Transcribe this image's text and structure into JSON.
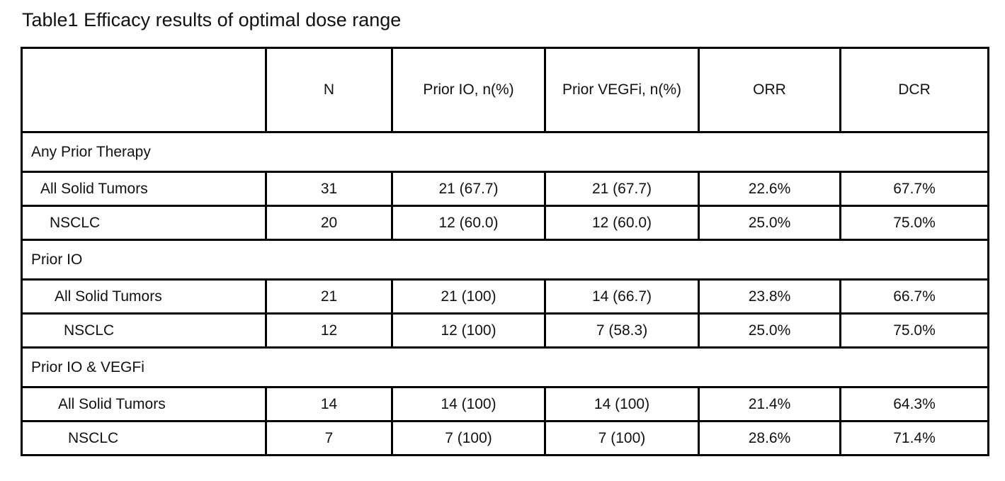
{
  "caption": "Table1 Efficacy results of optimal dose range",
  "columns": [
    "",
    "N",
    "Prior IO, n(%)",
    "Prior VEGFi, n(%)",
    "ORR",
    "DCR"
  ],
  "groups": [
    {
      "label": "Any Prior Therapy",
      "rows": [
        {
          "label": "All Solid Tumors",
          "n": "31",
          "prior_io": "21 (67.7)",
          "prior_vegfi": "21 (67.7)",
          "orr": "22.6%",
          "dcr": "67.7%"
        },
        {
          "label": "NSCLC",
          "n": "20",
          "prior_io": "12 (60.0)",
          "prior_vegfi": "12 (60.0)",
          "orr": "25.0%",
          "dcr": "75.0%"
        }
      ]
    },
    {
      "label": "Prior IO",
      "rows": [
        {
          "label": "All Solid Tumors",
          "n": "21",
          "prior_io": "21 (100)",
          "prior_vegfi": "14 (66.7)",
          "orr": "23.8%",
          "dcr": "66.7%"
        },
        {
          "label": "NSCLC",
          "n": "12",
          "prior_io": "12 (100)",
          "prior_vegfi": "7 (58.3)",
          "orr": "25.0%",
          "dcr": "75.0%"
        }
      ]
    },
    {
      "label": "Prior IO & VEGFi",
      "rows": [
        {
          "label": "All Solid Tumors",
          "n": "14",
          "prior_io": "14 (100)",
          "prior_vegfi": "14 (100)",
          "orr": "21.4%",
          "dcr": "64.3%"
        },
        {
          "label": "NSCLC",
          "n": "7",
          "prior_io": "7 (100)",
          "prior_vegfi": "7 (100)",
          "orr": "28.6%",
          "dcr": "71.4%"
        }
      ]
    }
  ]
}
